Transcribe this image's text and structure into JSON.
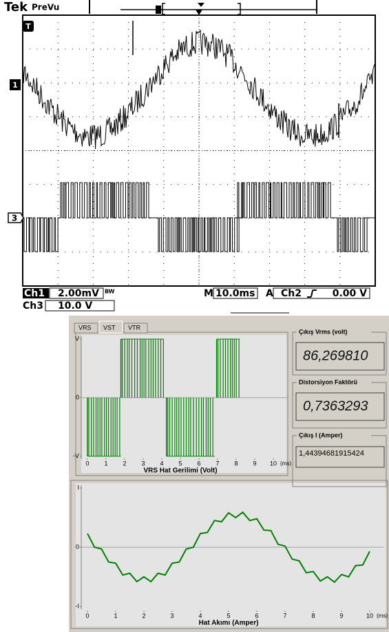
{
  "scope": {
    "brand": "Tek",
    "mode": "PreVu",
    "trigger_marker": "T",
    "ch1_marker": "1",
    "ch3_marker": "3",
    "ch1": {
      "label": "Ch1",
      "scale": "2.00mV",
      "bw": "BW"
    },
    "timebase": {
      "label": "M",
      "value": "10.0ms"
    },
    "trigger": {
      "label": "A",
      "source": "Ch2",
      "level": "0.00 V"
    },
    "ch3": {
      "label": "Ch3",
      "scale": "10.0 V"
    }
  },
  "tabs": [
    "VRS",
    "VST",
    "VTR"
  ],
  "active_tab": "VST",
  "readouts": [
    {
      "title": "Çıkış  Vrms (volt)",
      "value": "86,269810"
    },
    {
      "title": "Distorsiyon Faktörü",
      "value": "0,7363293"
    },
    {
      "title": "Çıkış  I (Amper)",
      "value": "1,44394681915424"
    }
  ],
  "chart_data": [
    {
      "type": "pwm",
      "xlabel": "VRS Hat Gerilimi (Volt)",
      "x_unit": "(ms)",
      "color": "#008000",
      "xlim": [
        0,
        10
      ],
      "xticks": [
        0,
        1,
        2,
        3,
        4,
        5,
        6,
        7,
        8,
        9,
        10
      ],
      "ylim": [
        -1,
        1
      ],
      "yticks": [
        {
          "value": 1,
          "label": "V"
        },
        0,
        {
          "value": -1,
          "label": "-V"
        }
      ],
      "segments": [
        {
          "start": 0,
          "end": 1.8,
          "level": -1
        },
        {
          "start": 1.8,
          "end": 4.1,
          "level": 1
        },
        {
          "start": 4.25,
          "end": 6.85,
          "level": -1
        },
        {
          "start": 6.95,
          "end": 8.2,
          "level": 1
        }
      ]
    },
    {
      "type": "line",
      "xlabel": "Hat  Akımı (Amper)",
      "x_unit": "(ms)",
      "color": "#008000",
      "xlim": [
        0,
        10
      ],
      "xticks": [
        0,
        1,
        2,
        3,
        4,
        5,
        6,
        7,
        8,
        9,
        10
      ],
      "ylim": [
        -1,
        1
      ],
      "yticks": [
        {
          "value": 1,
          "label": "I"
        },
        0,
        {
          "value": -1,
          "label": "-I"
        }
      ],
      "x": [
        0,
        0.25,
        0.5,
        0.75,
        1,
        1.25,
        1.5,
        1.75,
        2,
        2.25,
        2.5,
        2.75,
        3,
        3.25,
        3.5,
        3.75,
        4,
        4.25,
        4.5,
        4.75,
        5,
        5.25,
        5.5,
        5.75,
        6,
        6.25,
        6.5,
        6.75,
        7,
        7.25,
        7.5,
        7.75,
        8,
        8.25,
        8.5,
        8.75,
        9,
        9.25,
        9.5,
        9.75,
        10
      ],
      "values": [
        0.23,
        0.0,
        -0.03,
        -0.25,
        -0.27,
        -0.47,
        -0.44,
        -0.58,
        -0.5,
        -0.58,
        -0.44,
        -0.47,
        -0.27,
        -0.25,
        -0.03,
        0.0,
        0.23,
        0.25,
        0.45,
        0.43,
        0.58,
        0.5,
        0.59,
        0.45,
        0.48,
        0.29,
        0.28,
        0.05,
        0.02,
        -0.2,
        -0.23,
        -0.43,
        -0.41,
        -0.57,
        -0.5,
        -0.59,
        -0.46,
        -0.5,
        -0.31,
        -0.3,
        -0.07
      ]
    }
  ]
}
